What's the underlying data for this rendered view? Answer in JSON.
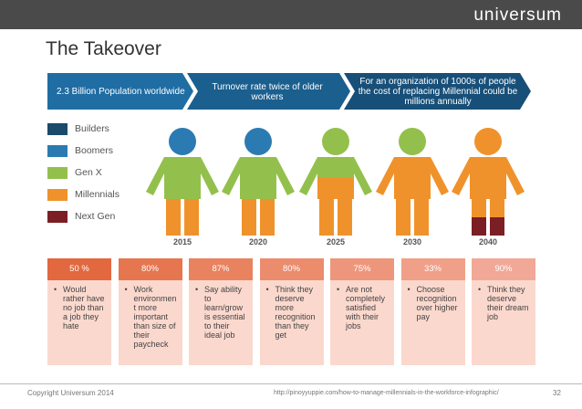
{
  "header": {
    "logo": "universum",
    "title": "The Takeover"
  },
  "banner": [
    "2.3 Billion Population worldwide",
    "Turnover rate twice of older workers",
    "For an organization of 1000s of people the cost of replacing Millennial could be millions annually"
  ],
  "legend": [
    "Builders",
    "Boomers",
    "Gen X",
    "Millennials",
    "Next Gen"
  ],
  "years": [
    "2015",
    "2020",
    "2025",
    "2030",
    "2040"
  ],
  "cards": [
    {
      "percent": "50 %",
      "text": "Would rather have no job than a job they hate"
    },
    {
      "percent": "80%",
      "text": "Work environmen t more important than size of their paycheck"
    },
    {
      "percent": "87%",
      "text": "Say ability to learn/grow is essential to their ideal job"
    },
    {
      "percent": "80%",
      "text": "Think they deserve more recognition than they get"
    },
    {
      "percent": "75%",
      "text": "Are not completely satisfied with their jobs"
    },
    {
      "percent": "33%",
      "text": "Choose recognition over higher pay"
    },
    {
      "percent": "90%",
      "text": "Think they deserve their dream job"
    }
  ],
  "footer": {
    "copyright": "Copyright Universum 2014",
    "url": "http://pinoyyuppie.com/how-to-manage-millennials-in-the-workforce-infographic/",
    "page": "32"
  }
}
